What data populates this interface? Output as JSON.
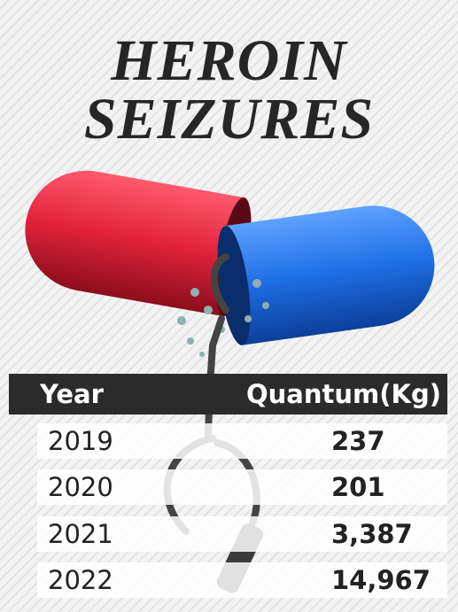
{
  "title": [
    "HEROIN",
    "SEIZURES"
  ],
  "table": {
    "header": [
      "Year",
      "Quantum(Kg)"
    ],
    "rows": [
      [
        "2019",
        "237"
      ],
      [
        "2020",
        "201"
      ],
      [
        "2021",
        "3,387"
      ],
      [
        "2022",
        "14,967"
      ]
    ]
  }
}
